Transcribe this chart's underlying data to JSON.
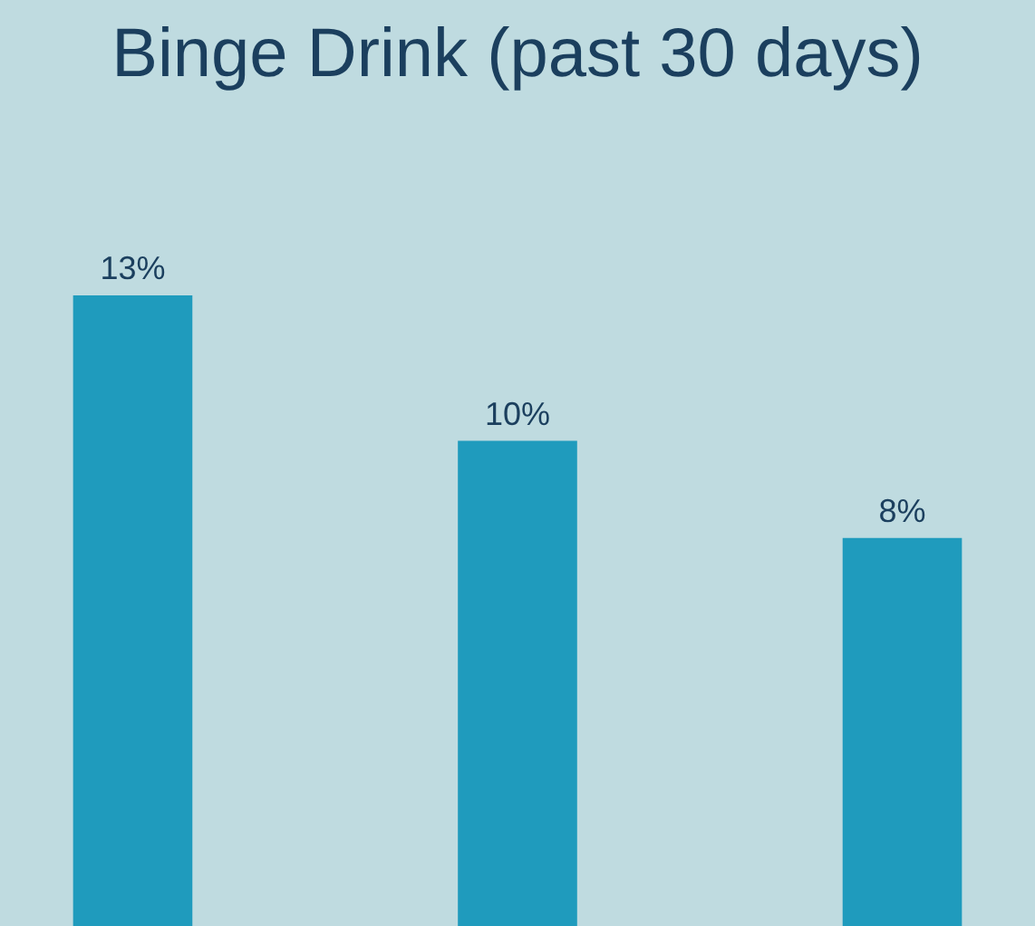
{
  "chart_data": {
    "type": "bar",
    "title": "Binge Drink (past 30 days)",
    "categories": [
      null,
      null,
      null
    ],
    "values": [
      13,
      10,
      8
    ],
    "value_labels": [
      "13%",
      "10%",
      "8%"
    ],
    "color": "#1f9bbd",
    "grid": false,
    "tick_labels": false
  }
}
